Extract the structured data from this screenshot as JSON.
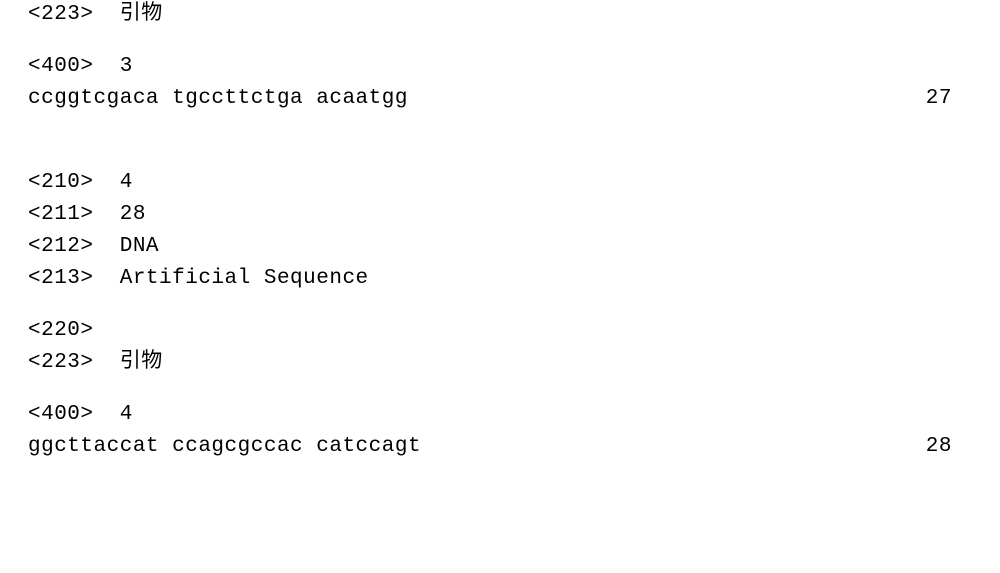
{
  "entry3": {
    "tag223": "<223>  引物",
    "tag400": "<400>  3",
    "sequence": "ccggtcgaca tgccttctga acaatgg",
    "length": "27"
  },
  "entry4": {
    "tag210": "<210>  4",
    "tag211": "<211>  28",
    "tag212": "<212>  DNA",
    "tag213": "<213>  Artificial Sequence",
    "tag220": "<220>",
    "tag223": "<223>  引物",
    "tag400": "<400>  4",
    "sequence": "ggcttaccat ccagcgccac catccagt",
    "length": "28"
  }
}
